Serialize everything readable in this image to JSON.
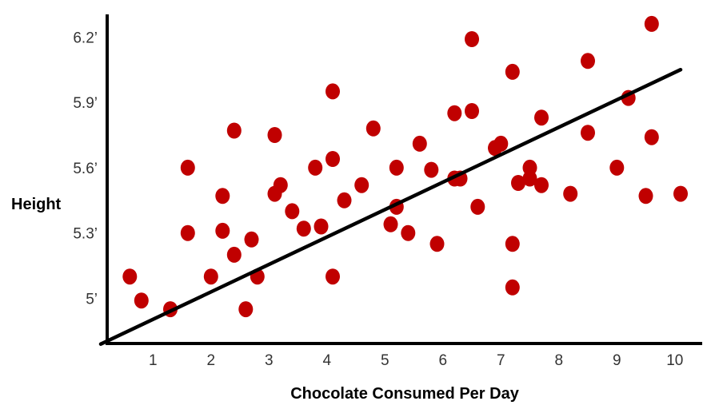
{
  "chart_data": {
    "type": "scatter",
    "title": "",
    "xlabel": "Chocolate Consumed Per Day",
    "ylabel": "Height",
    "x_ticks": [
      1,
      2,
      3,
      4,
      5,
      6,
      7,
      8,
      9,
      10
    ],
    "x_tick_labels": [
      "1",
      "2",
      "3",
      "4",
      "5",
      "6",
      "7",
      "8",
      "9",
      "10"
    ],
    "y_ticks": [
      5.0,
      5.3,
      5.6,
      5.9,
      6.2
    ],
    "y_tick_labels": [
      "5’",
      "5.3’",
      "5.6’",
      "5.9’",
      "6.2’"
    ],
    "xlim": [
      0.1,
      10.5
    ],
    "ylim": [
      4.8,
      6.3
    ],
    "grid": false,
    "point_color": "#c00000",
    "line_color": "#000000",
    "series": [
      {
        "points": [
          [
            0.6,
            5.1
          ],
          [
            0.8,
            4.99
          ],
          [
            1.3,
            4.95
          ],
          [
            1.6,
            5.6
          ],
          [
            1.6,
            5.3
          ],
          [
            2.0,
            5.1
          ],
          [
            2.2,
            5.31
          ],
          [
            2.2,
            5.47
          ],
          [
            2.4,
            5.2
          ],
          [
            2.4,
            5.77
          ],
          [
            2.6,
            4.95
          ],
          [
            2.7,
            5.27
          ],
          [
            2.8,
            5.1
          ],
          [
            3.1,
            5.48
          ],
          [
            3.1,
            5.75
          ],
          [
            3.2,
            5.52
          ],
          [
            3.4,
            5.4
          ],
          [
            3.6,
            5.32
          ],
          [
            3.8,
            5.6
          ],
          [
            3.9,
            5.33
          ],
          [
            4.1,
            5.1
          ],
          [
            4.1,
            5.95
          ],
          [
            4.1,
            5.64
          ],
          [
            4.3,
            5.45
          ],
          [
            4.6,
            5.52
          ],
          [
            4.8,
            5.78
          ],
          [
            5.1,
            5.34
          ],
          [
            5.2,
            5.6
          ],
          [
            5.2,
            5.42
          ],
          [
            5.4,
            5.3
          ],
          [
            5.6,
            5.71
          ],
          [
            5.8,
            5.59
          ],
          [
            5.9,
            5.25
          ],
          [
            6.2,
            5.85
          ],
          [
            6.2,
            5.55
          ],
          [
            6.3,
            5.55
          ],
          [
            6.5,
            6.19
          ],
          [
            6.5,
            5.86
          ],
          [
            6.6,
            5.42
          ],
          [
            6.9,
            5.69
          ],
          [
            7.0,
            5.71
          ],
          [
            7.2,
            6.04
          ],
          [
            7.2,
            5.25
          ],
          [
            7.2,
            5.05
          ],
          [
            7.3,
            5.53
          ],
          [
            7.5,
            5.6
          ],
          [
            7.5,
            5.55
          ],
          [
            7.7,
            5.83
          ],
          [
            7.7,
            5.52
          ],
          [
            8.2,
            5.48
          ],
          [
            8.5,
            6.09
          ],
          [
            8.5,
            5.76
          ],
          [
            9.0,
            5.6
          ],
          [
            9.2,
            5.92
          ],
          [
            9.5,
            5.47
          ],
          [
            9.6,
            6.26
          ],
          [
            9.6,
            5.74
          ],
          [
            10.1,
            5.48
          ]
        ]
      }
    ],
    "trend_line": [
      [
        0.1,
        4.79
      ],
      [
        10.1,
        6.05
      ]
    ]
  }
}
